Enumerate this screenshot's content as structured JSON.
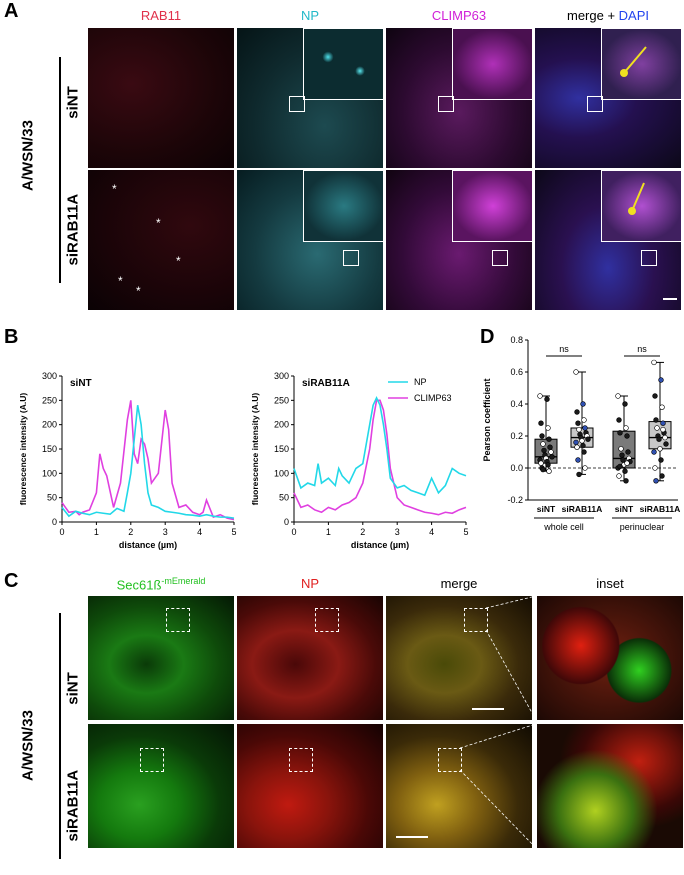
{
  "panel_letters": {
    "a": "A",
    "b": "B",
    "c": "C",
    "d": "D"
  },
  "panelA": {
    "virus_label": "A/WSN/33",
    "channels": [
      {
        "label": "RAB11",
        "color": "#e0304a"
      },
      {
        "label": "NP",
        "color": "#22b8c8"
      },
      {
        "label": "CLIMP63",
        "color": "#d020d8"
      },
      {
        "label": "merge + ",
        "color": "#000000"
      }
    ],
    "dapi_label": "DAPI",
    "dapi_color": "#2244ee",
    "rows": [
      "siNT",
      "siRAB11A"
    ],
    "asterisk": "*"
  },
  "panelC": {
    "virus_label": "A/WSN/33",
    "channels": [
      {
        "label": "Sec61ß",
        "color": "#22c020"
      },
      {
        "label": "NP",
        "color": "#e02020"
      },
      {
        "label": "merge",
        "color": "#000000"
      },
      {
        "label": "inset",
        "color": "#000000"
      }
    ],
    "sec_superscript": "-mEmerald",
    "rows": [
      "siNT",
      "siRAB11A"
    ]
  },
  "chart_data": [
    {
      "type": "line",
      "title": "siNT",
      "xlabel": "distance (µm)",
      "ylabel": "fluorescence intensity (A.U)",
      "xlim": [
        0,
        5
      ],
      "ylim": [
        0,
        300
      ],
      "xticks": [
        0,
        1,
        2,
        3,
        4,
        5
      ],
      "yticks": [
        0,
        50,
        100,
        150,
        200,
        250,
        300
      ],
      "series": [
        {
          "name": "NP",
          "color": "#22d8e8",
          "x": [
            0,
            0.2,
            0.4,
            0.6,
            0.8,
            1.0,
            1.2,
            1.4,
            1.6,
            1.8,
            1.9,
            2.0,
            2.1,
            2.2,
            2.3,
            2.4,
            2.5,
            2.6,
            2.8,
            3.0,
            3.2,
            3.4,
            3.6,
            3.8,
            4.0,
            4.2,
            4.4,
            4.6,
            4.8,
            5.0
          ],
          "y": [
            30,
            12,
            22,
            18,
            15,
            20,
            18,
            16,
            28,
            22,
            60,
            100,
            170,
            240,
            200,
            120,
            60,
            35,
            30,
            22,
            20,
            18,
            15,
            14,
            12,
            15,
            12,
            10,
            10,
            8
          ]
        },
        {
          "name": "CLIMP63",
          "color": "#e040e0",
          "x": [
            0,
            0.1,
            0.2,
            0.4,
            0.5,
            0.6,
            0.8,
            1.0,
            1.1,
            1.2,
            1.3,
            1.5,
            1.7,
            1.9,
            2.0,
            2.1,
            2.2,
            2.3,
            2.4,
            2.5,
            2.6,
            2.8,
            3.0,
            3.1,
            3.2,
            3.4,
            3.6,
            3.8,
            4.0,
            4.1,
            4.2,
            4.4,
            4.6,
            4.8,
            5.0
          ],
          "y": [
            40,
            30,
            20,
            22,
            15,
            20,
            25,
            60,
            140,
            110,
            95,
            30,
            80,
            210,
            250,
            140,
            120,
            170,
            160,
            130,
            80,
            100,
            230,
            190,
            80,
            30,
            35,
            20,
            15,
            20,
            45,
            10,
            15,
            8,
            5
          ]
        }
      ]
    },
    {
      "type": "line",
      "title": "siRAB11A",
      "xlabel": "distance (µm)",
      "ylabel": "fluorescence intensity (A.U)",
      "xlim": [
        0,
        5
      ],
      "ylim": [
        0,
        300
      ],
      "xticks": [
        0,
        1,
        2,
        3,
        4,
        5
      ],
      "yticks": [
        0,
        50,
        100,
        150,
        200,
        250,
        300
      ],
      "legend": "top-right",
      "series": [
        {
          "name": "NP",
          "color": "#22d8e8",
          "x": [
            0,
            0.2,
            0.4,
            0.6,
            0.7,
            0.8,
            1.0,
            1.2,
            1.3,
            1.4,
            1.6,
            1.8,
            2.0,
            2.1,
            2.2,
            2.3,
            2.4,
            2.5,
            2.6,
            2.7,
            2.8,
            3.0,
            3.2,
            3.4,
            3.6,
            3.8,
            4.0,
            4.2,
            4.4,
            4.6,
            4.8,
            5.0
          ],
          "y": [
            110,
            70,
            80,
            75,
            120,
            80,
            90,
            75,
            110,
            95,
            80,
            110,
            120,
            160,
            200,
            240,
            255,
            240,
            200,
            150,
            90,
            70,
            75,
            65,
            60,
            55,
            90,
            60,
            75,
            110,
            100,
            95
          ]
        },
        {
          "name": "CLIMP63",
          "color": "#e040e0",
          "x": [
            0,
            0.2,
            0.4,
            0.6,
            0.8,
            1.0,
            1.2,
            1.4,
            1.6,
            1.8,
            2.0,
            2.2,
            2.3,
            2.4,
            2.5,
            2.6,
            2.7,
            2.8,
            3.0,
            3.2,
            3.4,
            3.6,
            3.8,
            4.0,
            4.2,
            4.4,
            4.6,
            4.8,
            5.0
          ],
          "y": [
            60,
            30,
            35,
            25,
            20,
            30,
            25,
            35,
            40,
            50,
            80,
            150,
            210,
            250,
            250,
            230,
            180,
            110,
            50,
            35,
            30,
            25,
            20,
            18,
            15,
            20,
            18,
            25,
            30
          ]
        }
      ]
    },
    {
      "type": "box",
      "ylabel": "Pearson coefficient",
      "ylim": [
        -0.2,
        0.8
      ],
      "yticks": [
        -0.2,
        0.0,
        0.2,
        0.4,
        0.6,
        0.8
      ],
      "categories": [
        "siNT",
        "siRAB11A",
        "siNT",
        "siRAB11A"
      ],
      "groups": [
        {
          "label": "whole cell",
          "members": [
            0,
            1
          ]
        },
        {
          "label": "perinuclear",
          "members": [
            2,
            3
          ]
        }
      ],
      "significance": [
        "ns",
        "ns"
      ],
      "box_colors": [
        "#7a7a7a",
        "#c8c8c8",
        "#7a7a7a",
        "#c8c8c8"
      ],
      "boxes": [
        {
          "min": -0.02,
          "q1": 0.03,
          "median": 0.07,
          "q3": 0.18,
          "max": 0.45
        },
        {
          "min": -0.04,
          "q1": 0.13,
          "median": 0.19,
          "q3": 0.25,
          "max": 0.6
        },
        {
          "min": -0.08,
          "q1": 0.0,
          "median": 0.06,
          "q3": 0.23,
          "max": 0.45
        },
        {
          "min": -0.08,
          "q1": 0.12,
          "median": 0.19,
          "q3": 0.29,
          "max": 0.66
        }
      ],
      "points": [
        [
          0.45,
          0.43,
          0.28,
          0.25,
          0.2,
          0.18,
          0.15,
          0.13,
          0.11,
          0.1,
          0.08,
          0.07,
          0.06,
          0.05,
          0.04,
          0.03,
          0.02,
          0.0,
          -0.02,
          -0.01
        ],
        [
          0.6,
          0.4,
          0.35,
          0.3,
          0.28,
          0.25,
          0.24,
          0.22,
          0.21,
          0.2,
          0.19,
          0.18,
          0.17,
          0.16,
          0.14,
          0.13,
          0.1,
          0.05,
          0.0,
          -0.04
        ],
        [
          0.45,
          0.4,
          0.3,
          0.25,
          0.22,
          0.2,
          0.12,
          0.1,
          0.08,
          0.06,
          0.05,
          0.04,
          0.02,
          0.0,
          -0.02,
          -0.05,
          -0.08,
          0.01,
          0.03
        ],
        [
          0.66,
          0.55,
          0.45,
          0.38,
          0.3,
          0.28,
          0.25,
          0.22,
          0.2,
          0.19,
          0.18,
          0.15,
          0.12,
          0.1,
          0.05,
          0.0,
          -0.05,
          -0.08,
          0.24
        ]
      ]
    }
  ]
}
